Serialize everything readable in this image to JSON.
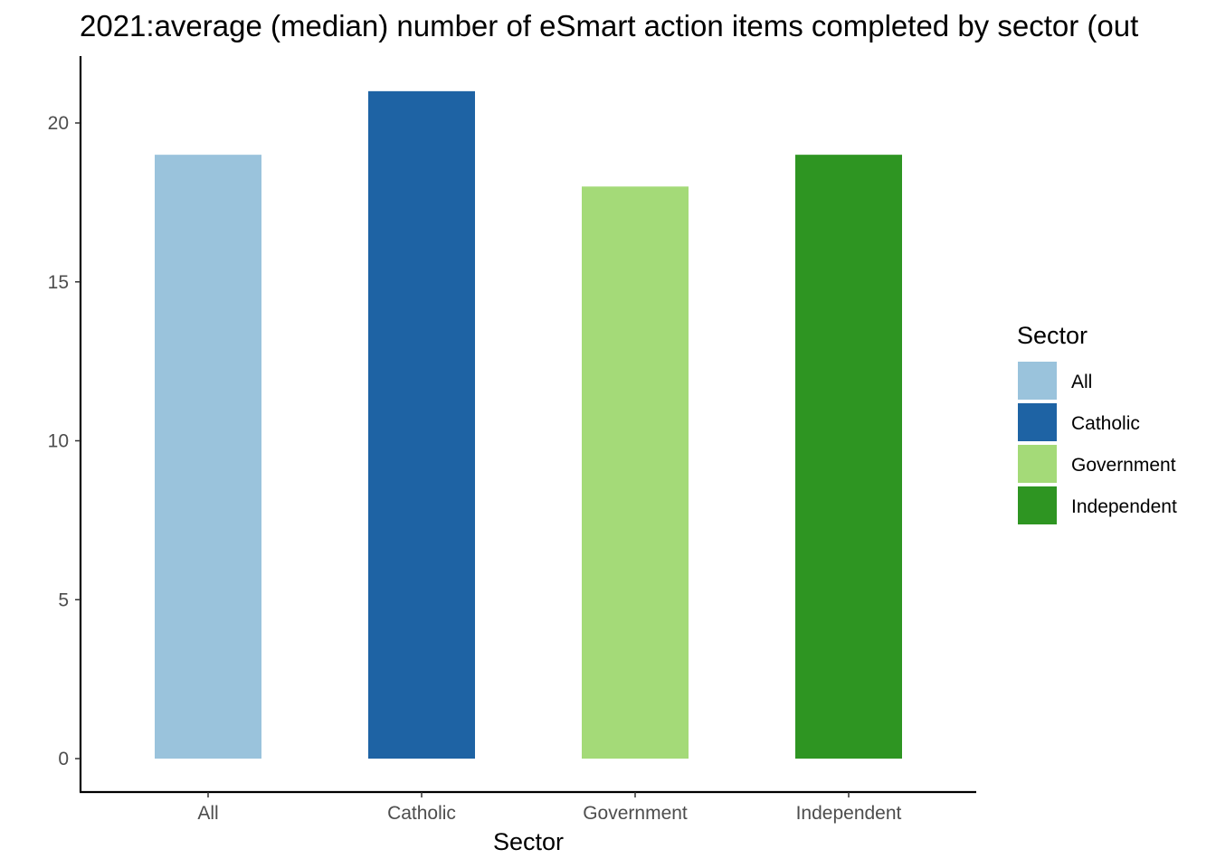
{
  "chart_data": {
    "type": "bar",
    "title": "2021:average (median) number of eSmart action items completed by sector (out",
    "xlabel": "Sector",
    "ylabel": "",
    "categories": [
      "All",
      "Catholic",
      "Government",
      "Independent"
    ],
    "values": [
      19,
      21,
      18,
      19
    ],
    "colors": [
      "#9ac3dc",
      "#1e63a4",
      "#a4da78",
      "#2e9522"
    ],
    "ylim": [
      0,
      22
    ],
    "yticks": [
      0,
      5,
      10,
      15,
      20
    ],
    "grid": false,
    "legend": {
      "title": "Sector",
      "placement": "right",
      "entries": [
        "All",
        "Catholic",
        "Government",
        "Independent"
      ]
    }
  }
}
